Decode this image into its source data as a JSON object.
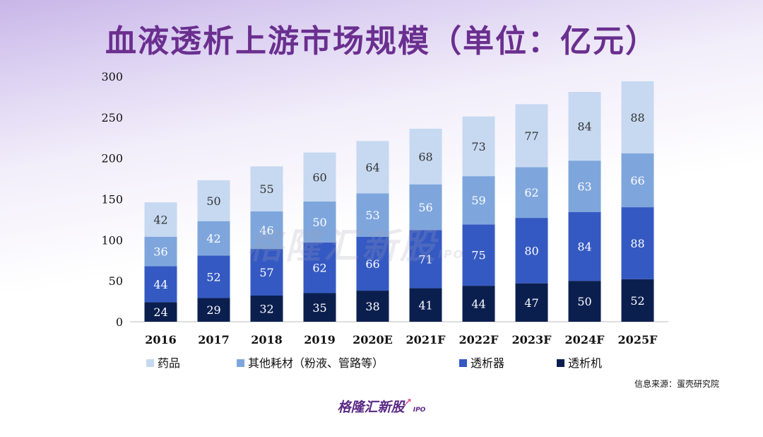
{
  "title": "血液透析上游市场规模（单位：亿元）",
  "source": "信息来源：蛋壳研究院",
  "brand": {
    "name": "格隆汇新股",
    "tag": "IPO"
  },
  "watermark": {
    "name": "格隆汇新股",
    "tag": "IPO"
  },
  "chart_data": {
    "type": "bar",
    "stacked": true,
    "categories": [
      "2016",
      "2017",
      "2018",
      "2019",
      "2020E",
      "2021F",
      "2022F",
      "2023F",
      "2024F",
      "2025F"
    ],
    "series": [
      {
        "name": "透析机",
        "color": "#0b1f4f",
        "values": [
          24,
          29,
          32,
          35,
          38,
          41,
          44,
          47,
          50,
          52
        ]
      },
      {
        "name": "透析器",
        "color": "#3559c2",
        "values": [
          44,
          52,
          57,
          62,
          66,
          71,
          75,
          80,
          84,
          88
        ]
      },
      {
        "name": "其他耗材（粉液、管路等）",
        "color": "#7ea6dc",
        "values": [
          36,
          42,
          46,
          50,
          53,
          56,
          59,
          62,
          63,
          66
        ]
      },
      {
        "name": "药品",
        "color": "#c7d9f1",
        "values": [
          42,
          50,
          55,
          60,
          64,
          68,
          73,
          77,
          84,
          88
        ]
      }
    ],
    "legend_order": [
      "药品",
      "其他耗材（粉液、管路等）",
      "透析器",
      "透析机"
    ],
    "ylim": [
      0,
      300
    ],
    "yticks": [
      0,
      50,
      100,
      150,
      200,
      250,
      300
    ],
    "grid": false,
    "legend_position": "bottom"
  }
}
